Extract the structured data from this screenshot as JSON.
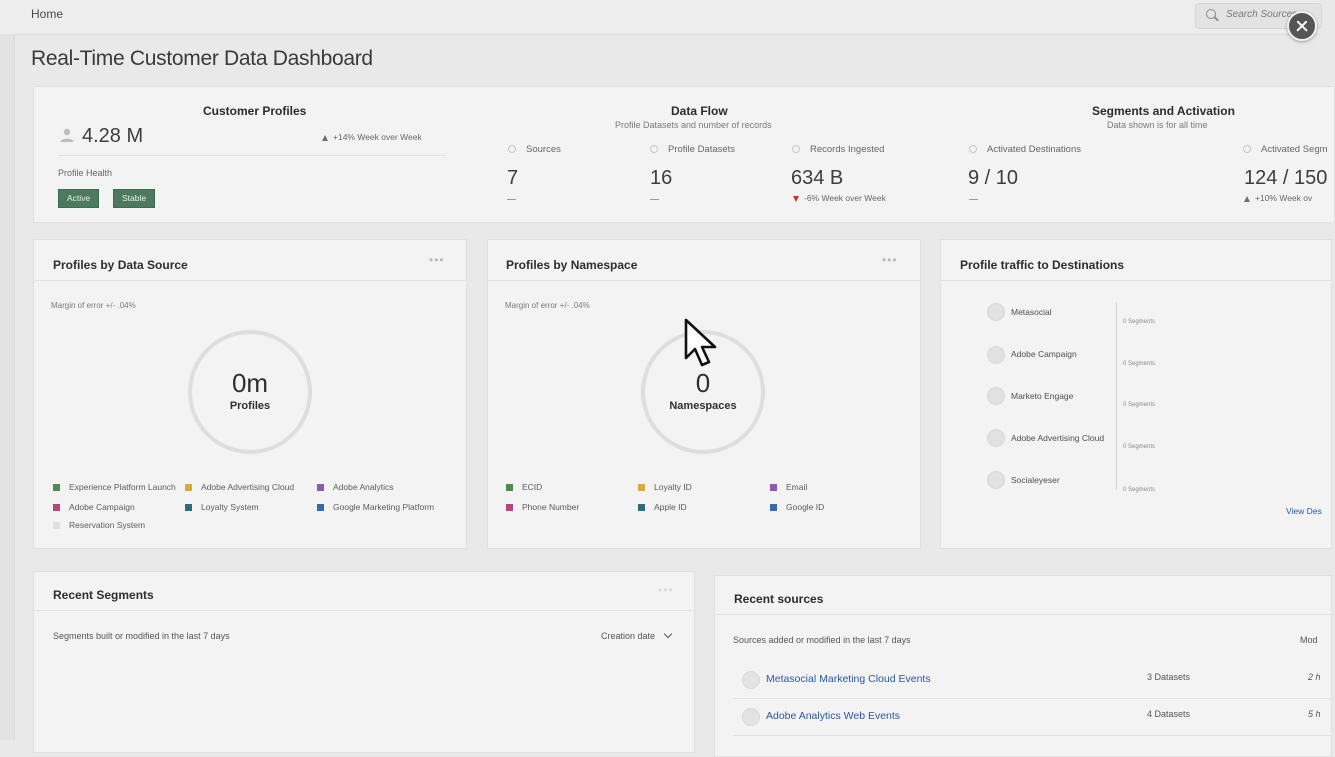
{
  "header": {
    "breadcrumb": "Home",
    "search_placeholder": "Search Sources"
  },
  "page": {
    "title": "Real-Time Customer Data Dashboard"
  },
  "summary": {
    "customer_profiles": {
      "title": "Customer Profiles",
      "value": "4.28 M",
      "trend": "+14% Week over Week",
      "health_label": "Profile Health",
      "badges": [
        "Active",
        "Stable"
      ]
    },
    "data_flow": {
      "title": "Data Flow",
      "subtitle": "Profile Datasets and number of records",
      "metrics": [
        {
          "label": "Sources",
          "value": "7",
          "trend": ""
        },
        {
          "label": "Profile Datasets",
          "value": "16",
          "trend": ""
        },
        {
          "label": "Records Ingested",
          "value": "634 B",
          "trend": "-6% Week over Week"
        }
      ]
    },
    "segments_activation": {
      "title": "Segments and Activation",
      "subtitle": "Data shown is for all time",
      "metrics": [
        {
          "label": "Activated Destinations",
          "value": "9 / 10",
          "trend": ""
        },
        {
          "label": "Activated Segm",
          "value": "124 / 150",
          "trend": "+10% Week ov"
        }
      ]
    }
  },
  "profiles_by_source": {
    "title": "Profiles by Data Source",
    "note": "Margin of error +/- .04%",
    "center_value": "0m",
    "center_label": "Profiles",
    "legend": [
      {
        "label": "Experience Platform Launch",
        "color": "#4f8a52"
      },
      {
        "label": "Adobe Advertising Cloud",
        "color": "#d9a93a"
      },
      {
        "label": "Adobe Analytics",
        "color": "#8e5bb0"
      },
      {
        "label": "Adobe Campaign",
        "color": "#b64680"
      },
      {
        "label": "Loyalty System",
        "color": "#2c6f7a"
      },
      {
        "label": "Google Marketing Platform",
        "color": "#3669b4"
      },
      {
        "label": "Reservation System",
        "color": "#e0e0e0"
      }
    ]
  },
  "profiles_by_namespace": {
    "title": "Profiles by Namespace",
    "note": "Margin of error +/- .04%",
    "center_value": "0",
    "center_label": "Namespaces",
    "legend": [
      {
        "label": "ECID",
        "color": "#4f8a52"
      },
      {
        "label": "Loyalty ID",
        "color": "#d9a93a"
      },
      {
        "label": "Email",
        "color": "#8e5bb0"
      },
      {
        "label": "Phone Number",
        "color": "#b64680"
      },
      {
        "label": "Apple ID",
        "color": "#2c6f7a"
      },
      {
        "label": "Google ID",
        "color": "#3669b4"
      }
    ]
  },
  "destinations": {
    "title": "Profile traffic to Destinations",
    "items": [
      {
        "name": "Metasocial",
        "segments": "0 Segments"
      },
      {
        "name": "Adobe Campaign",
        "segments": "0 Segments"
      },
      {
        "name": "Marketo Engage",
        "segments": "0 Segments"
      },
      {
        "name": "Adobe Advertising Cloud",
        "segments": "0 Segments"
      },
      {
        "name": "Socialeyeser",
        "segments": "0 Segments"
      }
    ],
    "view_link": "View Des"
  },
  "recent_segments": {
    "title": "Recent Segments",
    "subtitle": "Segments built or modified in the last 7 days",
    "sort_label": "Creation date"
  },
  "recent_sources": {
    "title": "Recent sources",
    "subtitle": "Sources added or modified in the last 7 days",
    "column_label": "Mod",
    "rows": [
      {
        "name": "Metasocial Marketing Cloud Events",
        "datasets": "3 Datasets",
        "time": "2 h"
      },
      {
        "name": "Adobe Analytics Web Events",
        "datasets": "4 Datasets",
        "time": "5 h"
      }
    ]
  },
  "colors": {
    "accent_green": "#4d7a5e",
    "link_blue": "#2b57a5",
    "trend_down": "#c0392b"
  }
}
